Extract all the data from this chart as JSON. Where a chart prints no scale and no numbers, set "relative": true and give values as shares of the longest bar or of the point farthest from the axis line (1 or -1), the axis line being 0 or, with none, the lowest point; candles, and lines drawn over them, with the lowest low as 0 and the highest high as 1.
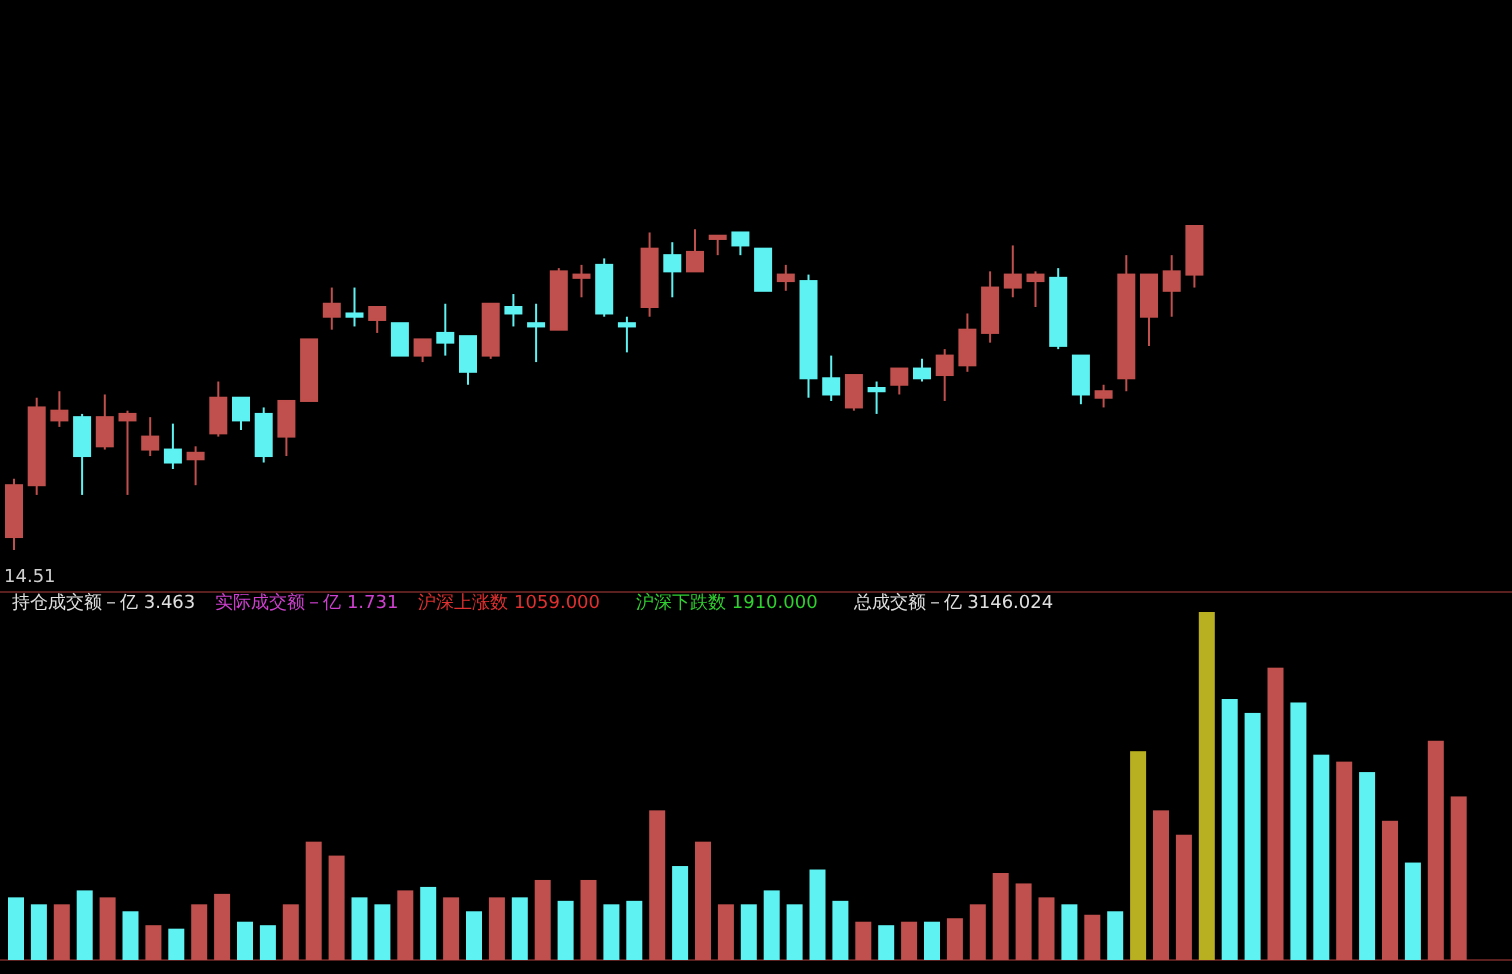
{
  "chart_data": [
    {
      "type": "candlestick",
      "relative": true,
      "categories": [
        null,
        null,
        null,
        null,
        null,
        null,
        null,
        null,
        null,
        null,
        null,
        null,
        null,
        null,
        null,
        null,
        null,
        null,
        null,
        null,
        null,
        null,
        null,
        null,
        null,
        null,
        null,
        null,
        null,
        null,
        null,
        null,
        null,
        null,
        null,
        null,
        null,
        null,
        null,
        null,
        null,
        null,
        null,
        null,
        null,
        null,
        null,
        null,
        null,
        null,
        null,
        null,
        null
      ],
      "ohlc": [
        [
          0.04,
          0.22,
          0,
          0.2
        ],
        [
          0.2,
          0.47,
          0.17,
          0.44
        ],
        [
          0.4,
          0.49,
          0.38,
          0.43
        ],
        [
          0.41,
          0.42,
          0.17,
          0.29
        ],
        [
          0.32,
          0.48,
          0.31,
          0.41
        ],
        [
          0.4,
          0.43,
          0.17,
          0.42
        ],
        [
          0.31,
          0.41,
          0.29,
          0.35
        ],
        [
          0.31,
          0.39,
          0.25,
          0.27
        ],
        [
          0.28,
          0.32,
          0.2,
          0.3
        ],
        [
          0.36,
          0.52,
          0.35,
          0.47
        ],
        [
          0.47,
          0.47,
          0.37,
          0.4
        ],
        [
          0.42,
          0.44,
          0.27,
          0.29
        ],
        [
          0.35,
          0.46,
          0.29,
          0.46
        ],
        [
          0.46,
          0.65,
          0.46,
          0.65
        ],
        [
          0.72,
          0.81,
          0.68,
          0.76
        ],
        [
          0.73,
          0.81,
          0.69,
          0.72
        ],
        [
          0.71,
          0.75,
          0.67,
          0.75
        ],
        [
          0.7,
          0.7,
          0.6,
          0.6
        ],
        [
          0.6,
          0.65,
          0.58,
          0.65
        ],
        [
          0.67,
          0.76,
          0.6,
          0.64
        ],
        [
          0.66,
          0.66,
          0.51,
          0.55
        ],
        [
          0.6,
          0.76,
          0.59,
          0.76
        ],
        [
          0.75,
          0.79,
          0.69,
          0.73
        ],
        [
          0.7,
          0.76,
          0.58,
          0.69
        ],
        [
          0.68,
          0.87,
          0.68,
          0.86
        ],
        [
          0.84,
          0.88,
          0.78,
          0.85
        ],
        [
          0.88,
          0.9,
          0.72,
          0.73
        ],
        [
          0.7,
          0.72,
          0.61,
          0.69
        ],
        [
          0.75,
          0.98,
          0.72,
          0.93
        ],
        [
          0.91,
          0.95,
          0.78,
          0.86
        ],
        [
          0.86,
          0.99,
          0.86,
          0.92
        ],
        [
          0.96,
          0.97,
          0.91,
          0.97
        ],
        [
          0.98,
          0.98,
          0.91,
          0.94
        ],
        [
          0.93,
          0.93,
          0.8,
          0.8
        ],
        [
          0.83,
          0.88,
          0.8,
          0.85
        ],
        [
          0.83,
          0.85,
          0.47,
          0.53
        ],
        [
          0.53,
          0.6,
          0.46,
          0.48
        ],
        [
          0.44,
          0.54,
          0.43,
          0.54
        ],
        [
          0.5,
          0.52,
          0.42,
          0.49
        ],
        [
          0.51,
          0.56,
          0.48,
          0.56
        ],
        [
          0.56,
          0.59,
          0.52,
          0.53
        ],
        [
          0.54,
          0.62,
          0.46,
          0.6
        ],
        [
          0.57,
          0.73,
          0.55,
          0.68
        ],
        [
          0.67,
          0.86,
          0.64,
          0.81
        ],
        [
          0.81,
          0.94,
          0.78,
          0.85
        ],
        [
          0.83,
          0.86,
          0.75,
          0.85
        ],
        [
          0.84,
          0.87,
          0.62,
          0.63
        ],
        [
          0.6,
          0.6,
          0.45,
          0.48
        ],
        [
          0.47,
          0.51,
          0.44,
          0.49
        ],
        [
          0.53,
          0.91,
          0.49,
          0.85
        ],
        [
          0.72,
          0.85,
          0.63,
          0.85
        ],
        [
          0.8,
          0.91,
          0.72,
          0.86
        ],
        [
          0.85,
          1,
          0.81,
          1
        ]
      ],
      "colors": [
        "#c0504d",
        "#c0504d",
        "#c0504d",
        "#5ef2f2",
        "#c0504d",
        "#c0504d",
        "#c0504d",
        "#5ef2f2",
        "#c0504d",
        "#c0504d",
        "#5ef2f2",
        "#5ef2f2",
        "#c0504d",
        "#c0504d",
        "#c0504d",
        "#5ef2f2",
        "#c0504d",
        "#5ef2f2",
        "#c0504d",
        "#5ef2f2",
        "#5ef2f2",
        "#c0504d",
        "#5ef2f2",
        "#5ef2f2",
        "#c0504d",
        "#c0504d",
        "#5ef2f2",
        "#5ef2f2",
        "#c0504d",
        "#5ef2f2",
        "#c0504d",
        "#c0504d",
        "#5ef2f2",
        "#5ef2f2",
        "#c0504d",
        "#5ef2f2",
        "#5ef2f2",
        "#c0504d",
        "#5ef2f2",
        "#c0504d",
        "#5ef2f2",
        "#c0504d",
        "#c0504d",
        "#c0504d",
        "#c0504d",
        "#c0504d",
        "#5ef2f2",
        "#5ef2f2",
        "#c0504d",
        "#c0504d",
        "#c0504d",
        "#c0504d",
        "#c0504d"
      ],
      "annotations": [
        "14.51"
      ]
    },
    {
      "type": "bar",
      "relative": true,
      "categories": [
        null,
        null,
        null,
        null,
        null,
        null,
        null,
        null,
        null,
        null,
        null,
        null,
        null,
        null,
        null,
        null,
        null,
        null,
        null,
        null,
        null,
        null,
        null,
        null,
        null,
        null,
        null,
        null,
        null,
        null,
        null,
        null,
        null,
        null,
        null,
        null,
        null,
        null,
        null,
        null,
        null,
        null,
        null,
        null,
        null,
        null,
        null,
        null,
        null,
        null,
        null,
        null,
        null,
        null,
        null,
        null,
        null,
        null,
        null,
        null,
        null,
        null,
        null,
        null
      ],
      "values": [
        0.18,
        0.16,
        0.16,
        0.2,
        0.18,
        0.14,
        0.1,
        0.09,
        0.16,
        0.19,
        0.11,
        0.1,
        0.16,
        0.34,
        0.3,
        0.18,
        0.16,
        0.2,
        0.21,
        0.18,
        0.14,
        0.18,
        0.18,
        0.23,
        0.17,
        0.23,
        0.16,
        0.17,
        0.43,
        0.27,
        0.34,
        0.16,
        0.16,
        0.2,
        0.16,
        0.26,
        0.17,
        0.11,
        0.1,
        0.11,
        0.11,
        0.12,
        0.16,
        0.25,
        0.22,
        0.18,
        0.16,
        0.13,
        0.14,
        0.6,
        0.43,
        0.36,
        1,
        0.75,
        0.71,
        0.84,
        0.74,
        0.59,
        0.57,
        0.54,
        0.4,
        0.28,
        0.63,
        0.47
      ],
      "colors": [
        "#5ef2f2",
        "#5ef2f2",
        "#c0504d",
        "#5ef2f2",
        "#c0504d",
        "#5ef2f2",
        "#c0504d",
        "#5ef2f2",
        "#c0504d",
        "#c0504d",
        "#5ef2f2",
        "#5ef2f2",
        "#c0504d",
        "#c0504d",
        "#c0504d",
        "#5ef2f2",
        "#5ef2f2",
        "#c0504d",
        "#5ef2f2",
        "#c0504d",
        "#5ef2f2",
        "#c0504d",
        "#5ef2f2",
        "#c0504d",
        "#5ef2f2",
        "#c0504d",
        "#5ef2f2",
        "#5ef2f2",
        "#c0504d",
        "#5ef2f2",
        "#c0504d",
        "#c0504d",
        "#5ef2f2",
        "#5ef2f2",
        "#5ef2f2",
        "#5ef2f2",
        "#5ef2f2",
        "#c0504d",
        "#5ef2f2",
        "#c0504d",
        "#5ef2f2",
        "#c0504d",
        "#c0504d",
        "#c0504d",
        "#c0504d",
        "#c0504d",
        "#5ef2f2",
        "#c0504d",
        "#5ef2f2",
        "#b8b020",
        "#c0504d",
        "#c0504d",
        "#b8b020",
        "#5ef2f2",
        "#5ef2f2",
        "#c0504d",
        "#5ef2f2",
        "#5ef2f2",
        "#c0504d",
        "#5ef2f2",
        "#c0504d",
        "#5ef2f2",
        "#c0504d",
        "#c0504d"
      ],
      "annotations": [
        "持仓成交额－亿 3.463",
        "实际成交额－亿 1.731",
        "沪深上涨数 1059.000",
        "沪深下跌数 1910.000",
        "总成交额－亿 3146.024"
      ]
    }
  ]
}
